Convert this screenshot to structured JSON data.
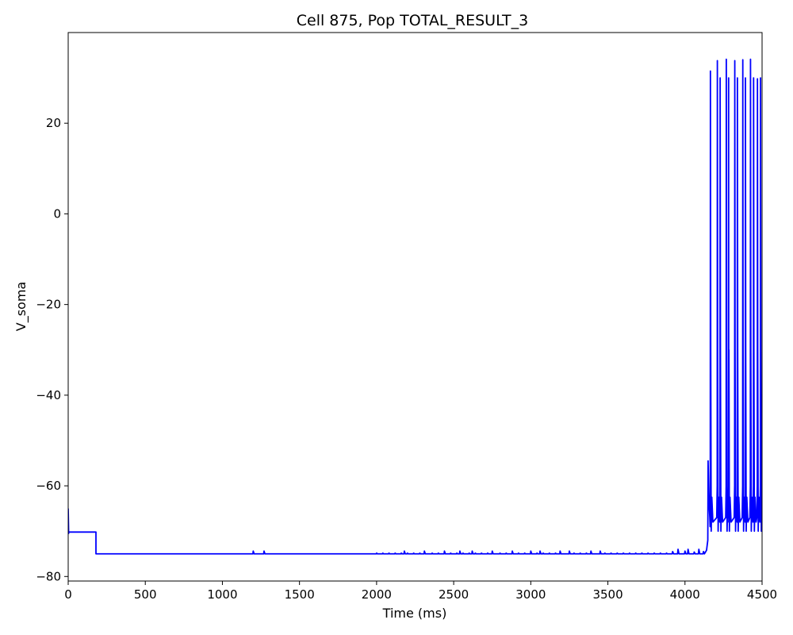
{
  "chart_data": {
    "type": "line",
    "title": "Cell 875, Pop TOTAL_RESULT_3",
    "xlabel": "Time (ms)",
    "ylabel": "V_soma",
    "xlim": [
      0,
      4500
    ],
    "ylim": [
      -81,
      40
    ],
    "xticks": [
      0,
      500,
      1000,
      1500,
      2000,
      2500,
      3000,
      3500,
      4000,
      4500
    ],
    "yticks": [
      -80,
      -60,
      -40,
      -20,
      0,
      20
    ],
    "xtick_labels": [
      "0",
      "500",
      "1000",
      "1500",
      "2000",
      "2500",
      "3000",
      "3500",
      "4000",
      "4500"
    ],
    "ytick_labels": [
      "−80",
      "−60",
      "−40",
      "−20",
      "0",
      "20"
    ],
    "grid": false,
    "color": "#0000ff",
    "trace": {
      "initial_transient": [
        [
          0,
          -65
        ],
        [
          3,
          -70.5
        ]
      ],
      "holding": {
        "from": 3,
        "to": 180,
        "v": -70.2
      },
      "resting_v": -75,
      "rest_from": 180,
      "small_epsps": [
        1200,
        1270,
        2180,
        2310,
        2440,
        2540,
        2620,
        2750,
        2880,
        3000,
        3060,
        3190,
        3250,
        3390,
        3450
      ],
      "tiny_bump_start": 2000,
      "tiny_bump_step": 40,
      "subthreshold_bumps": [
        [
          3920,
          -74.5
        ],
        [
          3955,
          -74
        ],
        [
          4000,
          -74.4
        ],
        [
          4020,
          -74
        ],
        [
          4060,
          -74.6
        ],
        [
          4090,
          -74
        ],
        [
          4120,
          -74.5
        ]
      ],
      "depolarization_onset": [
        [
          4140,
          -74.2
        ],
        [
          4148,
          -72
        ],
        [
          4150,
          -54.5
        ]
      ],
      "first_spike_after": [
        [
          4155,
          -63
        ],
        [
          4163,
          -69
        ]
      ],
      "spikes": [
        {
          "t": 4165,
          "peak": 31.5
        },
        {
          "t": 4210,
          "peak": 33.8
        },
        {
          "t": 4228,
          "peak": 30.0
        },
        {
          "t": 4268,
          "peak": 34.1
        },
        {
          "t": 4283,
          "peak": 30.0
        },
        {
          "t": 4323,
          "peak": 33.8
        },
        {
          "t": 4340,
          "peak": 30.0
        },
        {
          "t": 4375,
          "peak": 34.0
        },
        {
          "t": 4392,
          "peak": 30.0
        },
        {
          "t": 4425,
          "peak": 34.1
        },
        {
          "t": 4445,
          "peak": 30.0
        },
        {
          "t": 4470,
          "peak": 29.8
        },
        {
          "t": 4490,
          "peak": 30.0
        }
      ],
      "spike_trough": -70,
      "rebound": -62.5,
      "end": [
        4500,
        -66
      ]
    }
  }
}
